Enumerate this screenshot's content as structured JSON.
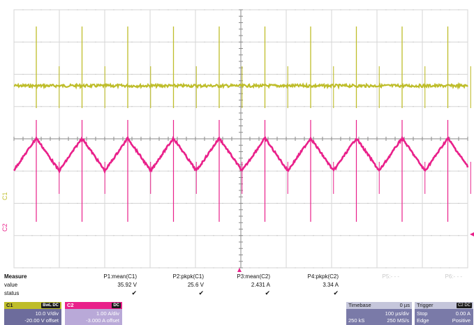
{
  "colors": {
    "c1": "#bebd2a",
    "c2": "#e9208a",
    "grid": "#d5d5d5",
    "panel_bg": "#7a7aa8"
  },
  "traces": {
    "c1_marker": "C1",
    "c2_marker": "C2"
  },
  "measure": {
    "header": "Measure",
    "row_value": "value",
    "row_status": "status",
    "params": [
      {
        "name": "P1:mean(C1)",
        "value": "35.92 V",
        "status": "✔"
      },
      {
        "name": "P2:pkpk(C1)",
        "value": "25.6 V",
        "status": "✔"
      },
      {
        "name": "P3:mean(C2)",
        "value": "2.431 A",
        "status": "✔"
      },
      {
        "name": "P4:pkpk(C2)",
        "value": "3.34 A",
        "status": "✔"
      },
      {
        "name": "P5:- - -",
        "value": "",
        "status": ""
      },
      {
        "name": "P6:- - -",
        "value": "",
        "status": ""
      }
    ]
  },
  "channels": {
    "c1": {
      "label": "C1",
      "badge": "BwL DC",
      "scale": "10.0 V/div",
      "offset": "-20.00 V offset"
    },
    "c2": {
      "label": "C2",
      "badge": "DC",
      "scale": "1.00 A/div",
      "offset": "-3.000 A offset"
    }
  },
  "timebase": {
    "title": "Timebase",
    "delay": "0 µs",
    "per_div": "100 µs/div",
    "samples": "250 kS",
    "rate": "250 MS/s"
  },
  "trigger": {
    "title": "Trigger",
    "badge": "C2 DC",
    "mode": "Stop",
    "level": "0.00 A",
    "type": "Edge",
    "slope": "Positive"
  }
}
